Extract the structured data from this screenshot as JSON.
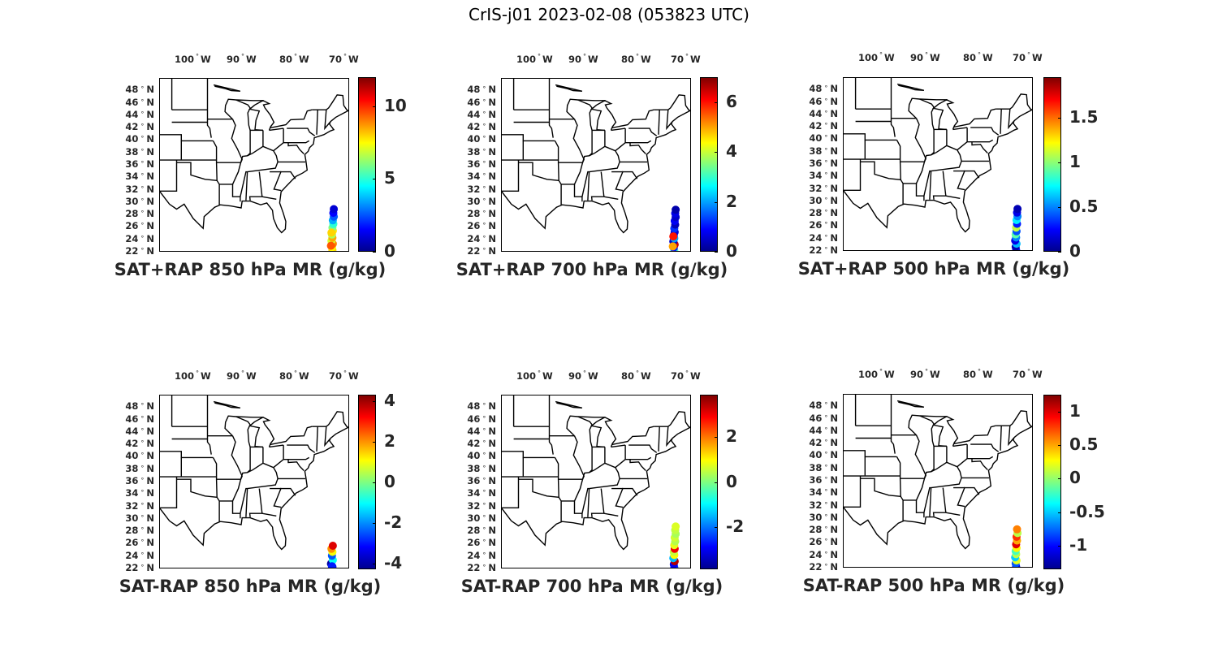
{
  "figure_title": "CrIS-j01 2023-02-08 (053823 UTC)",
  "longitude_ticks": [
    "100",
    "90",
    "80",
    "70"
  ],
  "longitude_hemisphere": "W",
  "latitude_ticks": [
    "48",
    "46",
    "44",
    "42",
    "40",
    "38",
    "36",
    "34",
    "32",
    "30",
    "28",
    "26",
    "24",
    "22"
  ],
  "latitude_hemisphere": "N",
  "colormap": "jet",
  "panels": [
    {
      "title": "SAT+RAP 850 hPa MR (g/kg)",
      "cmin": 0,
      "cmax": 12,
      "ticks": [
        "0",
        "5",
        "10"
      ],
      "tick_values": [
        0,
        5,
        10
      ],
      "obs": [
        [
          -70.2,
          22.4,
          8
        ],
        [
          -70.3,
          22.9,
          7.5
        ],
        [
          -70.1,
          23.4,
          9
        ],
        [
          -70.4,
          23.9,
          7
        ],
        [
          -70.2,
          24.4,
          8.5
        ],
        [
          -70.3,
          24.9,
          6.5
        ],
        [
          -70.1,
          25.5,
          7.8
        ],
        [
          -70.2,
          26,
          6
        ],
        [
          -70.0,
          26.6,
          5
        ],
        [
          -70.1,
          27.2,
          3.5
        ],
        [
          -69.9,
          27.8,
          2.5
        ],
        [
          -70.0,
          28.4,
          1.5
        ],
        [
          -69.9,
          29,
          1
        ],
        [
          -70.5,
          23.1,
          9.5
        ],
        [
          -70.4,
          25.2,
          8
        ]
      ]
    },
    {
      "title": "SAT+RAP 700 hPa MR (g/kg)",
      "cmin": 0,
      "cmax": 7,
      "ticks": [
        "0",
        "2",
        "4",
        "6"
      ],
      "tick_values": [
        0,
        2,
        4,
        6
      ],
      "obs": [
        [
          -70.2,
          22.3,
          3
        ],
        [
          -70.3,
          22.8,
          1
        ],
        [
          -70.1,
          23.3,
          6.5
        ],
        [
          -70.4,
          23.8,
          0.5
        ],
        [
          -70.2,
          24.3,
          2
        ],
        [
          -70.3,
          24.8,
          1
        ],
        [
          -70.1,
          25.3,
          0.6
        ],
        [
          -70.2,
          25.9,
          1.2
        ],
        [
          -70.0,
          26.5,
          0.4
        ],
        [
          -70.1,
          27.1,
          0.8
        ],
        [
          -69.9,
          27.7,
          0.5
        ],
        [
          -70.0,
          28.3,
          0.7
        ],
        [
          -69.9,
          28.9,
          0.3
        ],
        [
          -70.5,
          23.0,
          5
        ],
        [
          -70.4,
          24.6,
          6
        ]
      ]
    },
    {
      "title": "SAT+RAP 500 hPa MR (g/kg)",
      "cmin": 0,
      "cmax": 1.95,
      "ticks": [
        "0",
        "0.5",
        "1",
        "1.5"
      ],
      "tick_values": [
        0,
        0.5,
        1,
        1.5
      ],
      "obs": [
        [
          -70.2,
          22.3,
          0.3
        ],
        [
          -70.3,
          22.8,
          0.1
        ],
        [
          -70.1,
          23.3,
          0.6
        ],
        [
          -70.4,
          23.8,
          0.2
        ],
        [
          -70.2,
          24.3,
          0.5
        ],
        [
          -70.3,
          24.8,
          0.9
        ],
        [
          -70.1,
          25.3,
          0.4
        ],
        [
          -70.2,
          25.9,
          1.1
        ],
        [
          -70.0,
          26.5,
          0.3
        ],
        [
          -70.1,
          27.1,
          0.7
        ],
        [
          -69.9,
          27.7,
          0.5
        ],
        [
          -70.0,
          28.3,
          0.2
        ],
        [
          -69.9,
          28.9,
          0.1
        ]
      ]
    },
    {
      "title": "SAT-RAP 850 hPa MR (g/kg)",
      "cmin": -4.3,
      "cmax": 4.3,
      "ticks": [
        "-4",
        "-2",
        "0",
        "2",
        "4"
      ],
      "tick_values": [
        -4,
        -2,
        0,
        2,
        4
      ],
      "obs": [
        [
          -70.2,
          22.4,
          -3.5
        ],
        [
          -70.5,
          22.9,
          -4
        ],
        [
          -70.1,
          23.5,
          -1
        ],
        [
          -70.3,
          24.2,
          -2.5
        ],
        [
          -70.2,
          24.8,
          1
        ],
        [
          -70.4,
          25.3,
          2
        ],
        [
          -70.1,
          25.8,
          3.5
        ],
        [
          -70.3,
          22.5,
          -3
        ]
      ]
    },
    {
      "title": "SAT-RAP 700 hPa MR (g/kg)",
      "cmin": -3.9,
      "cmax": 3.9,
      "ticks": [
        "-2",
        "0",
        "2"
      ],
      "tick_values": [
        -2,
        0,
        2
      ],
      "obs": [
        [
          -70.2,
          22.3,
          -2.5
        ],
        [
          -70.3,
          22.8,
          -3
        ],
        [
          -70.1,
          23.3,
          3.5
        ],
        [
          -70.4,
          23.8,
          -1.5
        ],
        [
          -70.2,
          24.3,
          1
        ],
        [
          -70.3,
          24.8,
          0.5
        ],
        [
          -70.1,
          25.3,
          3
        ],
        [
          -70.2,
          25.9,
          0.8
        ],
        [
          -70.0,
          26.5,
          0.4
        ],
        [
          -70.1,
          27.1,
          0.6
        ],
        [
          -69.9,
          27.7,
          0.3
        ],
        [
          -70.0,
          28.3,
          0.5
        ],
        [
          -69.9,
          28.9,
          0.7
        ]
      ]
    },
    {
      "title": "SAT-RAP 500 hPa MR (g/kg)",
      "cmin": -1.35,
      "cmax": 1.25,
      "ticks": [
        "-1",
        "-0.5",
        "0",
        "0.5",
        "1"
      ],
      "tick_values": [
        -1,
        -0.5,
        0,
        0.5,
        1
      ],
      "obs": [
        [
          -70.2,
          22.3,
          -1.1
        ],
        [
          -70.3,
          22.8,
          -0.8
        ],
        [
          -70.1,
          23.3,
          0.2
        ],
        [
          -70.4,
          23.8,
          -0.5
        ],
        [
          -70.2,
          24.3,
          0.1
        ],
        [
          -70.3,
          24.8,
          -0.2
        ],
        [
          -70.1,
          25.3,
          0.3
        ],
        [
          -70.2,
          25.9,
          1
        ],
        [
          -70.0,
          26.5,
          0.5
        ],
        [
          -70.1,
          27.1,
          0.8
        ],
        [
          -69.9,
          27.7,
          0.1
        ],
        [
          -70.0,
          28.3,
          0.6
        ]
      ]
    }
  ]
}
